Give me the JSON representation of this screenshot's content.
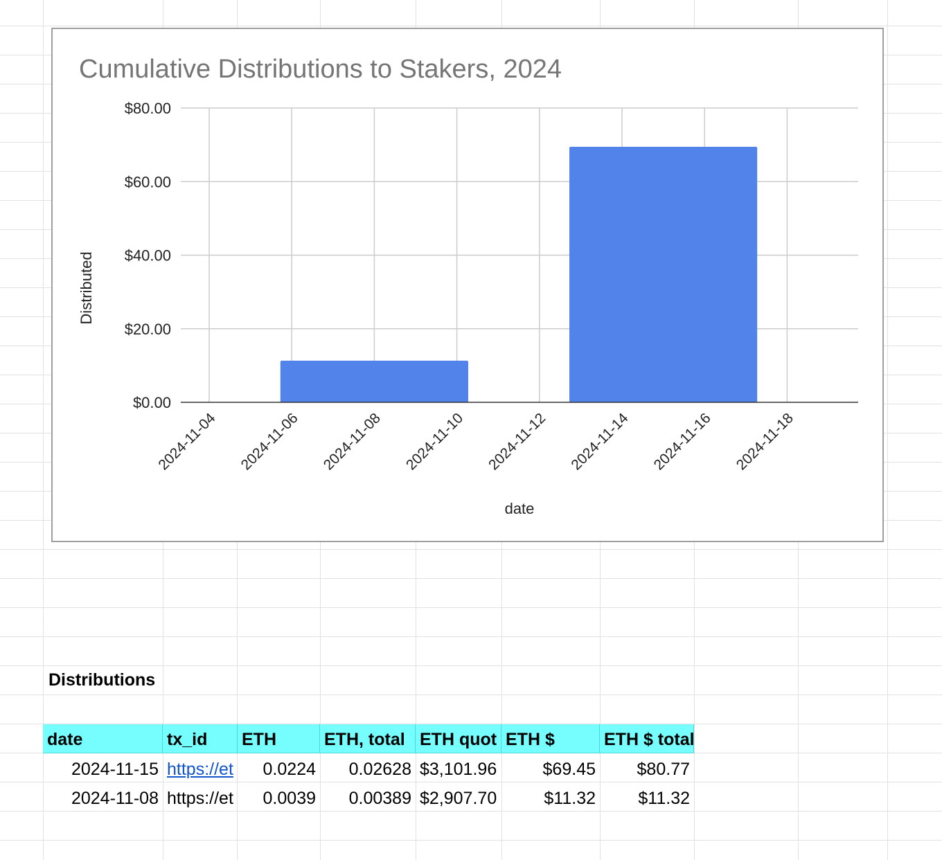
{
  "chart_data": {
    "type": "bar",
    "title": "Cumulative Distributions to Stakers, 2024",
    "xlabel": "date",
    "ylabel": "Distributed",
    "ylim": [
      0,
      80
    ],
    "yticks": [
      "$80.00",
      "$60.00",
      "$40.00",
      "$20.00",
      "$0.00"
    ],
    "xticks": [
      "2024-11-04",
      "2024-11-06",
      "2024-11-08",
      "2024-11-10",
      "2024-11-12",
      "2024-11-14",
      "2024-11-16",
      "2024-11-18"
    ],
    "bars": [
      {
        "date": "2024-11-08",
        "value": 11.32
      },
      {
        "date": "2024-11-15",
        "value": 69.45
      }
    ],
    "bar_color": "#5283ea",
    "grid": true,
    "legend": "none"
  },
  "sheet": {
    "section_title": "Distributions",
    "headers": [
      "date",
      "tx_id",
      "ETH",
      "ETH, total",
      "ETH quot",
      "ETH $",
      "ETH $ total"
    ],
    "rows": [
      [
        "2024-11-15",
        "https://et",
        "0.0224",
        "0.02628",
        "$3,101.96",
        "$69.45",
        "$80.77"
      ],
      [
        "2024-11-08",
        "https://et",
        "0.0039",
        "0.00389",
        "$2,907.70",
        "$11.32",
        "$11.32"
      ]
    ],
    "header_color": "#76fdfd",
    "link_color": "#1155cc"
  }
}
